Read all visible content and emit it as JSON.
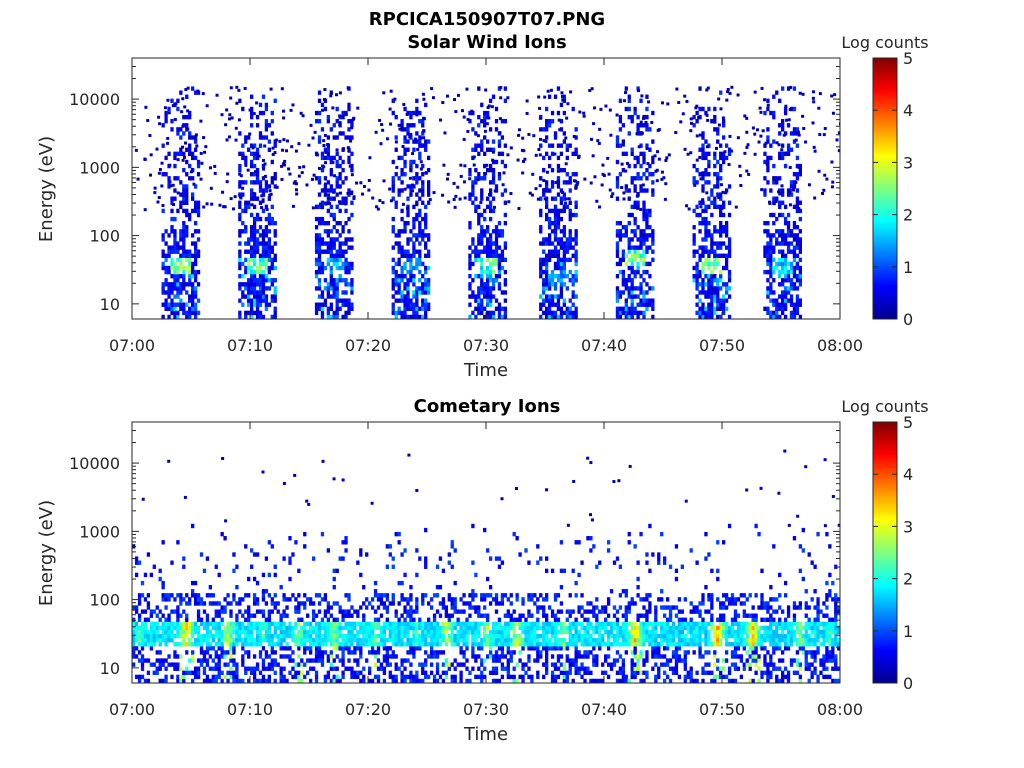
{
  "figure": {
    "title": "RPCICA150907T07.PNG"
  },
  "chart_data": [
    {
      "type": "heatmap",
      "title": "Solar Wind Ions",
      "xlabel": "Time",
      "ylabel": "Energy (eV)",
      "x_ticks": [
        "07:00",
        "07:10",
        "07:20",
        "07:30",
        "07:40",
        "07:50",
        "08:00"
      ],
      "x_range_minutes": [
        0,
        60
      ],
      "y_scale": "log",
      "y_ticks": [
        "10",
        "100",
        "1000",
        "10000"
      ],
      "y_range": [
        6,
        40000
      ],
      "colorbar": {
        "label": "Log counts",
        "range": [
          0,
          5
        ],
        "ticks": [
          "0",
          "1",
          "2",
          "3",
          "4",
          "5"
        ],
        "colormap": "jet"
      },
      "bursts": [
        {
          "start_min": 2.5,
          "end_min": 5.5,
          "peak_log_counts": 3.0,
          "peak_energy_eV": 38
        },
        {
          "start_min": 9.0,
          "end_min": 12.0,
          "peak_log_counts": 2.8,
          "peak_energy_eV": 38
        },
        {
          "start_min": 15.5,
          "end_min": 18.5,
          "peak_log_counts": 1.8,
          "peak_energy_eV": 38
        },
        {
          "start_min": 22.0,
          "end_min": 25.0,
          "peak_log_counts": 1.5,
          "peak_energy_eV": 35
        },
        {
          "start_min": 28.5,
          "end_min": 31.5,
          "peak_log_counts": 2.6,
          "peak_energy_eV": 38
        },
        {
          "start_min": 34.5,
          "end_min": 37.5,
          "peak_log_counts": 1.6,
          "peak_energy_eV": 25
        },
        {
          "start_min": 41.0,
          "end_min": 44.0,
          "peak_log_counts": 2.9,
          "peak_energy_eV": 45
        },
        {
          "start_min": 47.5,
          "end_min": 50.5,
          "peak_log_counts": 2.9,
          "peak_energy_eV": 38
        },
        {
          "start_min": 53.5,
          "end_min": 56.5,
          "peak_log_counts": 2.0,
          "peak_energy_eV": 38
        }
      ]
    },
    {
      "type": "heatmap",
      "title": "Cometary Ions",
      "xlabel": "Time",
      "ylabel": "Energy (eV)",
      "x_ticks": [
        "07:00",
        "07:10",
        "07:20",
        "07:30",
        "07:40",
        "07:50",
        "08:00"
      ],
      "x_range_minutes": [
        0,
        60
      ],
      "y_scale": "log",
      "y_ticks": [
        "10",
        "100",
        "1000",
        "10000"
      ],
      "y_range": [
        6,
        40000
      ],
      "colorbar": {
        "label": "Log counts",
        "range": [
          0,
          5
        ],
        "ticks": [
          "0",
          "1",
          "2",
          "3",
          "4",
          "5"
        ],
        "colormap": "jet"
      },
      "band_energy_eV": [
        20,
        40
      ],
      "hotspots": [
        {
          "minute": 0.5,
          "log_counts": 2.5
        },
        {
          "minute": 4.5,
          "log_counts": 3.8
        },
        {
          "minute": 8.0,
          "log_counts": 3.2
        },
        {
          "minute": 11.0,
          "log_counts": 2.5
        },
        {
          "minute": 14.0,
          "log_counts": 3.0
        },
        {
          "minute": 17.0,
          "log_counts": 3.0
        },
        {
          "minute": 20.5,
          "log_counts": 2.8
        },
        {
          "minute": 24.0,
          "log_counts": 2.5
        },
        {
          "minute": 26.5,
          "log_counts": 3.2
        },
        {
          "minute": 30.0,
          "log_counts": 3.0
        },
        {
          "minute": 32.5,
          "log_counts": 3.3
        },
        {
          "minute": 36.5,
          "log_counts": 2.8
        },
        {
          "minute": 42.5,
          "log_counts": 3.8
        },
        {
          "minute": 49.5,
          "log_counts": 4.0
        },
        {
          "minute": 52.5,
          "log_counts": 3.8
        },
        {
          "minute": 56.5,
          "log_counts": 3.0
        },
        {
          "minute": 59.0,
          "log_counts": 2.5
        }
      ]
    }
  ]
}
